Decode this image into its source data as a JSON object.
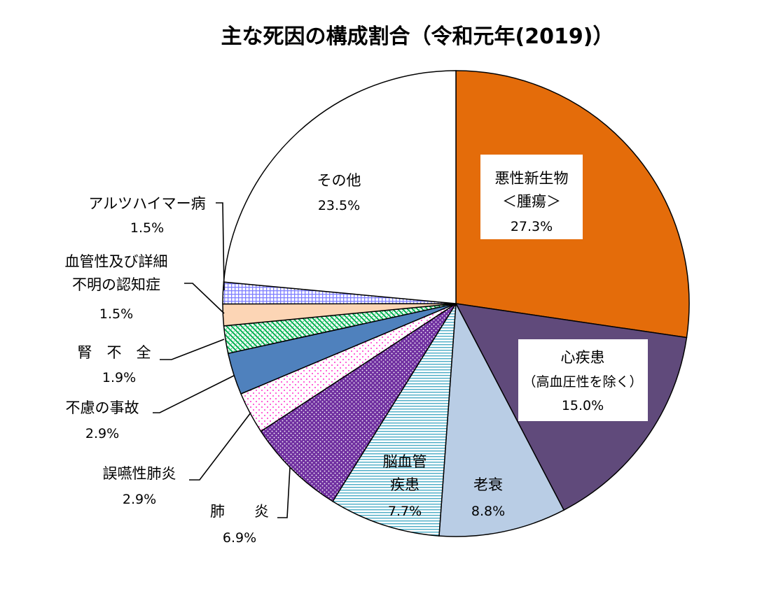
{
  "chart_data": {
    "type": "pie",
    "title": "主な死因の構成割合（令和元年(2019)）",
    "unit": "%",
    "start_angle_deg": 0,
    "direction": "clockwise",
    "slices": [
      {
        "key": "cancer",
        "label_lines": [
          "悪性新生物",
          "＜腫瘍＞"
        ],
        "value": 27.3,
        "percent": "27.3%",
        "color": "#E46C0A",
        "pattern": "solid"
      },
      {
        "key": "heart",
        "label_lines": [
          "心疾患",
          "（高血圧性を除く）"
        ],
        "value": 15.0,
        "percent": "15.0%",
        "color": "#604A7B",
        "pattern": "solid"
      },
      {
        "key": "senility",
        "label_lines": [
          "老衰"
        ],
        "value": 8.8,
        "percent": "8.8%",
        "color": "#B9CDE5",
        "pattern": "solid"
      },
      {
        "key": "stroke",
        "label_lines": [
          "脳血管",
          "疾患"
        ],
        "value": 7.7,
        "percent": "7.7%",
        "color": "#4BACC6",
        "pattern": "horizontal-lines"
      },
      {
        "key": "pneumonia",
        "label_lines": [
          "肺　　炎"
        ],
        "value": 6.9,
        "percent": "6.9%",
        "color": "#7030A0",
        "pattern": "dots-on-purple"
      },
      {
        "key": "aspiration",
        "label_lines": [
          "誤嚥性肺炎"
        ],
        "value": 2.9,
        "percent": "2.9%",
        "color": "#FF33CC",
        "pattern": "sparse-dots"
      },
      {
        "key": "accident",
        "label_lines": [
          "不慮の事故"
        ],
        "value": 2.9,
        "percent": "2.9%",
        "color": "#4F81BD",
        "pattern": "solid"
      },
      {
        "key": "renal",
        "label_lines": [
          "腎　不　全"
        ],
        "value": 1.9,
        "percent": "1.9%",
        "color": "#00B050",
        "pattern": "diagonal-dots"
      },
      {
        "key": "dementia",
        "label_lines": [
          "血管性及び詳細",
          "不明の認知症"
        ],
        "value": 1.5,
        "percent": "1.5%",
        "color": "#FCD5B5",
        "pattern": "solid"
      },
      {
        "key": "alzheimer",
        "label_lines": [
          "アルツハイマー病"
        ],
        "value": 1.5,
        "percent": "1.5%",
        "color": "#7F7FFF",
        "pattern": "grid"
      },
      {
        "key": "other",
        "label_lines": [
          "その他"
        ],
        "value": 23.5,
        "percent": "23.5%",
        "color": "#FFFFFF",
        "pattern": "solid"
      }
    ]
  }
}
